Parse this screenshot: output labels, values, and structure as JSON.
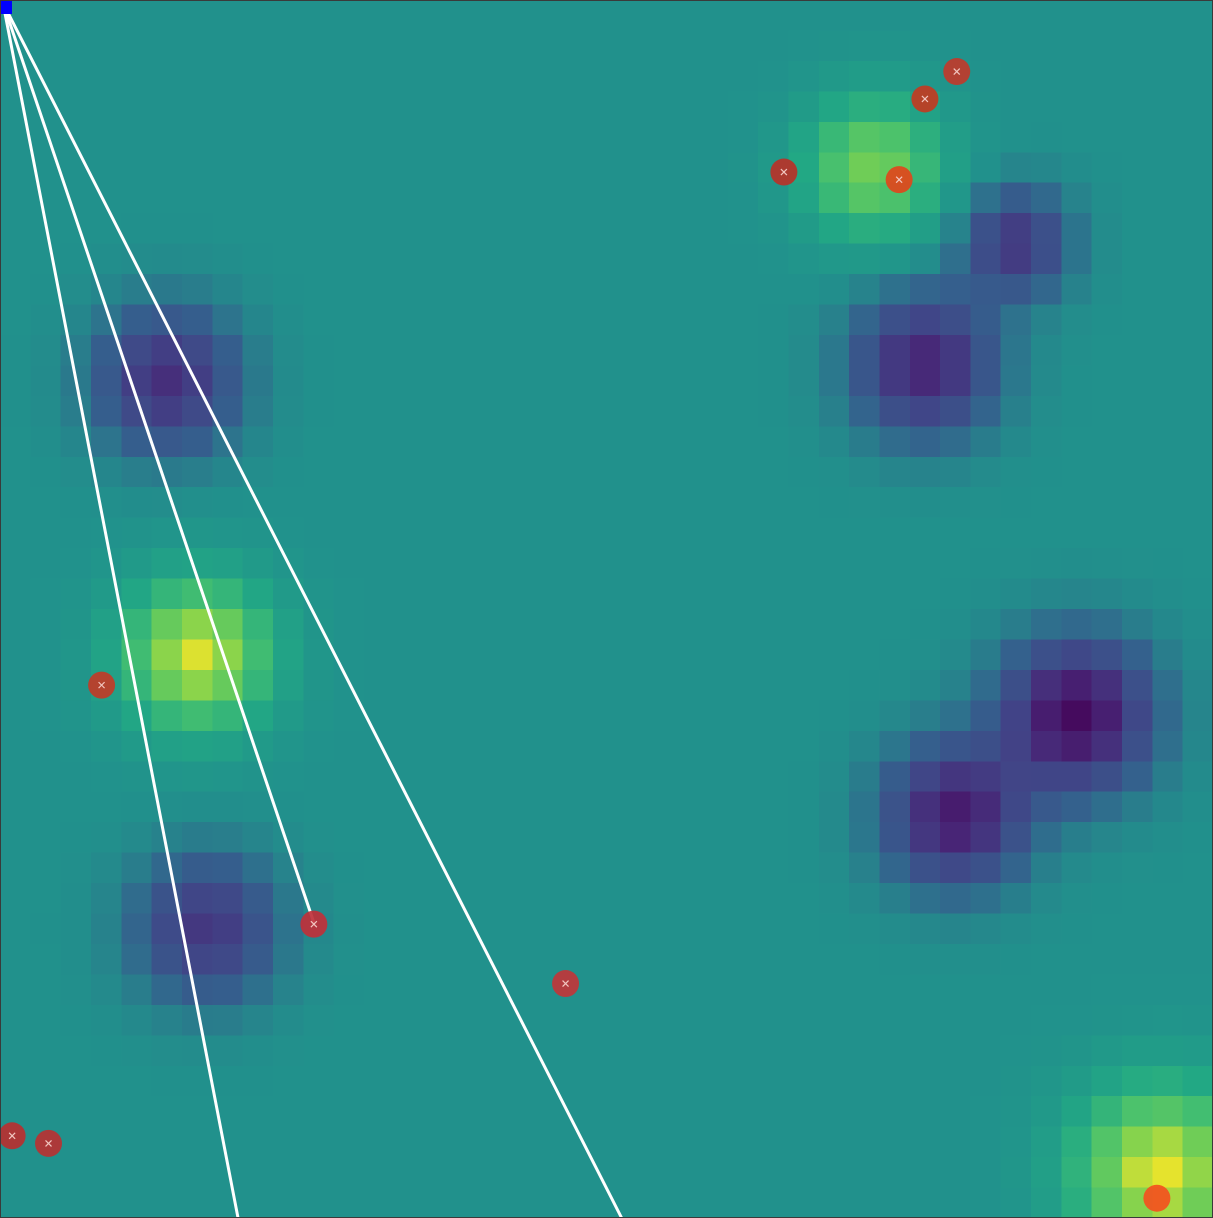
{
  "scene": {
    "field": {
      "grid_cols": 40,
      "grid_rows": 40,
      "colormap": "viridis",
      "baseline_level": 0.5,
      "bumps": [
        {
          "col": 5.5,
          "row": 12.5,
          "amplitude": -0.33,
          "spread": 1.6
        },
        {
          "col": 6.5,
          "row": 21.5,
          "amplitude": 0.47,
          "spread": 1.7
        },
        {
          "col": 6.8,
          "row": 30.5,
          "amplitude": -0.3,
          "spread": 1.6
        },
        {
          "col": 28.8,
          "row": 5.5,
          "amplitude": 0.36,
          "spread": 1.6
        },
        {
          "col": 33.5,
          "row": 8.0,
          "amplitude": -0.3,
          "spread": 1.2
        },
        {
          "col": 30.5,
          "row": 12.0,
          "amplitude": -0.37,
          "spread": 1.6
        },
        {
          "col": 35.5,
          "row": 23.5,
          "amplitude": -0.46,
          "spread": 1.7
        },
        {
          "col": 31.5,
          "row": 26.8,
          "amplitude": -0.4,
          "spread": 1.6
        },
        {
          "col": 38.3,
          "row": 38.5,
          "amplitude": 0.48,
          "spread": 2.0
        }
      ]
    },
    "origin": {
      "col": 0.1,
      "row": 0.1,
      "color": "#0000ff"
    },
    "beam_color": "#ffffff",
    "beams": [
      {
        "end_col": 7.85,
        "end_row": 40.0
      },
      {
        "end_col": 10.35,
        "end_row": 30.3
      },
      {
        "end_col": 20.5,
        "end_row": 40.0
      }
    ],
    "targets": [
      {
        "col": 31.55,
        "row": 2.35,
        "color": "#c0392b",
        "marked": true
      },
      {
        "col": 30.5,
        "row": 3.25,
        "color": "#c23b22",
        "marked": true
      },
      {
        "col": 25.85,
        "row": 5.65,
        "color": "#b83228",
        "marked": true
      },
      {
        "col": 29.65,
        "row": 5.9,
        "color": "#e0461c",
        "marked": true
      },
      {
        "col": 3.35,
        "row": 22.5,
        "color": "#c13b27",
        "marked": true
      },
      {
        "col": 10.35,
        "row": 30.35,
        "color": "#c0303a",
        "marked": true
      },
      {
        "col": 18.65,
        "row": 32.3,
        "color": "#c0363a",
        "marked": true
      },
      {
        "col": 0.4,
        "row": 37.3,
        "color": "#b83030",
        "marked": true
      },
      {
        "col": 1.6,
        "row": 37.55,
        "color": "#b83232",
        "marked": true
      },
      {
        "col": 38.15,
        "row": 39.35,
        "color": "#f4511e",
        "marked": false
      }
    ],
    "target_cross_color": "#f2c6c0"
  }
}
